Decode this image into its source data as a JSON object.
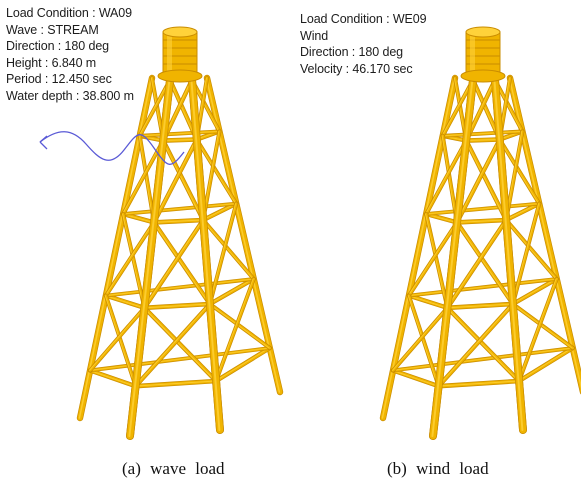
{
  "colors": {
    "structure": "#f0b400",
    "structure_shadow": "#c98c00",
    "structure_highlight": "#ffd23a",
    "wave_line": "#5a5ad6",
    "text": "#1d1d1d"
  },
  "panels": [
    {
      "id": "a",
      "info_lines": [
        "Load Condition : WA09",
        "Wave : STREAM",
        "Direction : 180 deg",
        "Height : 6.840 m",
        "Period : 12.450 sec",
        "Water depth : 38.800 m"
      ],
      "caption": "(a) wave load"
    },
    {
      "id": "b",
      "info_lines": [
        "Load Condition : WE09",
        "Wind",
        "Direction : 180 deg",
        "Velocity : 46.170 sec"
      ],
      "caption": "(b) wind load"
    }
  ]
}
